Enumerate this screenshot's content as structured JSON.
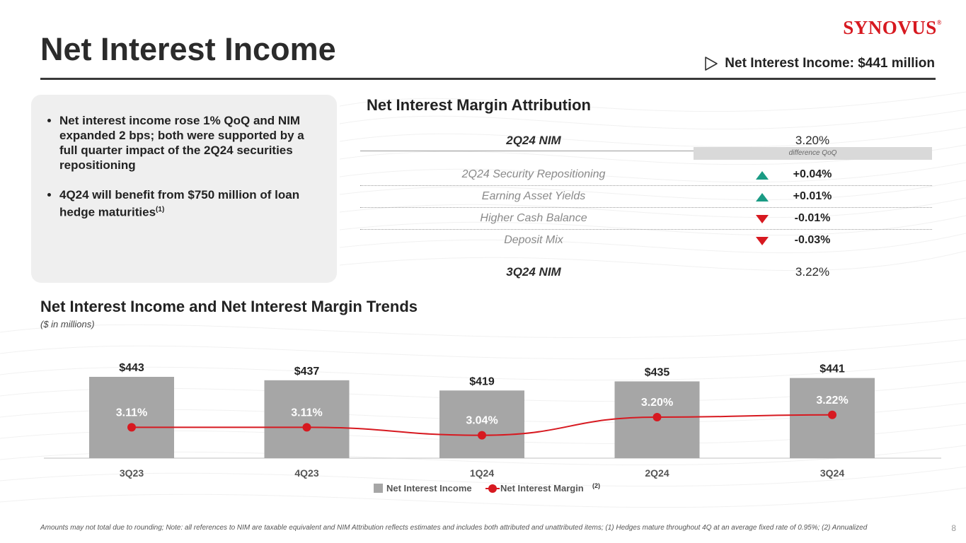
{
  "brand": {
    "logo_text": "SYNOVUS",
    "reg_mark": "®",
    "accent_color": "#d71920",
    "teal_color": "#1a9b84",
    "bar_color": "#a6a6a6"
  },
  "header": {
    "title": "Net Interest Income",
    "headline_icon": "play-outline-icon",
    "headline": "Net Interest Income: $441 million"
  },
  "bullets": [
    {
      "text": "Net interest income rose 1% QoQ and NIM expanded 2 bps; both were supported by a full quarter impact of the 2Q24 securities repositioning",
      "sup": ""
    },
    {
      "text": "4Q24 will benefit from $750 million of loan hedge maturities",
      "sup": "(1)"
    }
  ],
  "attribution": {
    "title": "Net Interest Margin Attribution",
    "start": {
      "label": "2Q24 NIM",
      "value": "3.20%"
    },
    "diff_label": "difference QoQ",
    "items": [
      {
        "label": "2Q24 Security Repositioning",
        "value": "+0.04%",
        "direction": "up"
      },
      {
        "label": "Earning Asset Yields",
        "value": "+0.01%",
        "direction": "up"
      },
      {
        "label": "Higher Cash Balance",
        "value": "-0.01%",
        "direction": "down"
      },
      {
        "label": "Deposit Mix",
        "value": "-0.03%",
        "direction": "down"
      }
    ],
    "end": {
      "label": "3Q24 NIM",
      "value": "3.22%"
    }
  },
  "trends": {
    "title": "Net Interest Income and Net Interest Margin Trends",
    "subtitle": "($ in millions)"
  },
  "chart_data": {
    "type": "bar",
    "title": "Net Interest Income and Net Interest Margin Trends",
    "categories": [
      "3Q23",
      "4Q23",
      "1Q24",
      "2Q24",
      "3Q24"
    ],
    "series": [
      {
        "name": "Net Interest Income",
        "type": "bar",
        "values": [
          443,
          437,
          419,
          435,
          441
        ],
        "labels": [
          "$443",
          "$437",
          "$419",
          "$435",
          "$441"
        ]
      },
      {
        "name": "Net Interest Margin",
        "type": "line",
        "values": [
          3.11,
          3.11,
          3.04,
          3.2,
          3.22
        ],
        "labels": [
          "3.11%",
          "3.11%",
          "3.04%",
          "3.20%",
          "3.22%"
        ]
      }
    ],
    "legend": [
      {
        "label": "Net Interest Income",
        "sup": ""
      },
      {
        "label": "Net Interest Margin",
        "sup": "(2)"
      }
    ],
    "legend_position": "bottom-center"
  },
  "footnote": "Amounts may not total due to rounding; Note: all references to NIM are taxable equivalent and NIM Attribution reflects estimates and includes both attributed and unattributed items; (1) Hedges mature throughout 4Q at an average fixed rate of 0.95%; (2) Annualized",
  "page_number": "8"
}
